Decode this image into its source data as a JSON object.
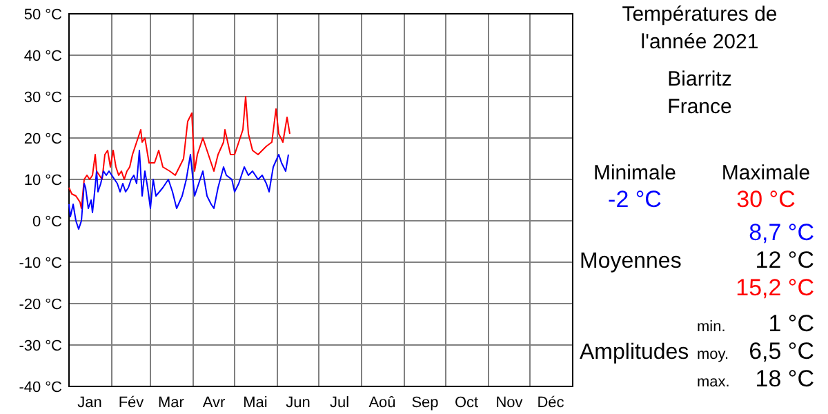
{
  "chart_data": {
    "type": "line",
    "title": "Températures de l'année 2021",
    "subtitle": "Biarritz France",
    "annotations": [
      "Minimale",
      "Maximale",
      "-2 °C",
      "30 °C",
      "8,7 °C",
      "Moyennes",
      "12 °C",
      "15,2 °C",
      "min.",
      "1 °C",
      "Amplitudes",
      "moy.",
      "6,5 °C",
      "max.",
      "18 °C"
    ],
    "xlim": [
      "2021-01-01",
      "2022-01-01"
    ],
    "xticks": [
      {
        "value": "2021-01-01",
        "label": null
      },
      {
        "value": "2021-01-16",
        "label": "Jan"
      },
      {
        "value": "2021-02-01",
        "label": null
      },
      {
        "value": "2021-02-15",
        "label": "Fév"
      },
      {
        "value": "2021-03-01",
        "label": null
      },
      {
        "value": "2021-03-16",
        "label": "Mar"
      },
      {
        "value": "2021-04-01",
        "label": null
      },
      {
        "value": "2021-04-16",
        "label": "Avr"
      },
      {
        "value": "2021-05-01",
        "label": null
      },
      {
        "value": "2021-05-16",
        "label": "Mai"
      },
      {
        "value": "2021-06-01",
        "label": null
      },
      {
        "value": "2021-06-16",
        "label": "Jun"
      },
      {
        "value": "2021-07-01",
        "label": null
      },
      {
        "value": "2021-07-16",
        "label": "Jul"
      },
      {
        "value": "2021-08-01",
        "label": null
      },
      {
        "value": "2021-08-16",
        "label": "Aoû"
      },
      {
        "value": "2021-09-01",
        "label": null
      },
      {
        "value": "2021-09-16",
        "label": "Sep"
      },
      {
        "value": "2021-10-01",
        "label": null
      },
      {
        "value": "2021-10-16",
        "label": "Oct"
      },
      {
        "value": "2021-11-01",
        "label": null
      },
      {
        "value": "2021-11-16",
        "label": "Nov"
      },
      {
        "value": "2021-12-01",
        "label": null
      },
      {
        "value": "2021-12-16",
        "label": "Déc"
      }
    ],
    "ylim": [
      -40,
      50
    ],
    "yticks": [
      {
        "value": -40,
        "label": "-40 °C"
      },
      {
        "value": -30,
        "label": "-30 °C"
      },
      {
        "value": -20,
        "label": "-20 °C"
      },
      {
        "value": -10,
        "label": "-10 °C"
      },
      {
        "value": 0,
        "label": "0 °C"
      },
      {
        "value": 10,
        "label": "10 °C"
      },
      {
        "value": 20,
        "label": "20 °C"
      },
      {
        "value": 30,
        "label": "30 °C"
      },
      {
        "value": 40,
        "label": "40 °C"
      },
      {
        "value": 50,
        "label": "50 °C"
      }
    ],
    "grid": true,
    "series": [
      {
        "color": "#ff0000",
        "x": [
          "2021-01-01",
          "2021-01-03",
          "2021-01-06",
          "2021-01-09",
          "2021-01-10",
          "2021-01-12",
          "2021-01-14",
          "2021-01-16",
          "2021-01-18",
          "2021-01-20",
          "2021-01-21",
          "2021-01-23",
          "2021-01-25",
          "2021-01-27",
          "2021-01-29",
          "2021-01-31",
          "2021-02-02",
          "2021-02-04",
          "2021-02-06",
          "2021-02-08",
          "2021-02-10",
          "2021-02-12",
          "2021-02-14",
          "2021-02-16",
          "2021-02-18",
          "2021-02-20",
          "2021-02-22",
          "2021-02-23",
          "2021-02-25",
          "2021-02-28",
          "2021-03-04",
          "2021-03-07",
          "2021-03-10",
          "2021-03-15",
          "2021-03-19",
          "2021-03-22",
          "2021-03-25",
          "2021-03-28",
          "2021-03-31",
          "2021-04-02",
          "2021-04-04",
          "2021-04-08",
          "2021-04-11",
          "2021-04-14",
          "2021-04-16",
          "2021-04-19",
          "2021-04-23",
          "2021-04-24",
          "2021-04-28",
          "2021-05-01",
          "2021-05-04",
          "2021-05-07",
          "2021-05-09",
          "2021-05-11",
          "2021-05-14",
          "2021-05-18",
          "2021-05-21",
          "2021-05-24",
          "2021-05-28",
          "2021-05-31",
          "2021-06-02",
          "2021-06-05",
          "2021-06-08",
          "2021-06-10"
        ],
        "values": [
          8,
          6.5,
          6,
          4.5,
          3,
          10,
          11,
          10,
          11,
          16,
          12,
          11,
          10,
          16,
          17,
          13,
          17,
          13,
          11,
          12,
          10,
          12,
          13,
          16,
          18,
          20,
          22,
          19,
          20,
          14,
          14,
          17,
          13,
          12,
          11,
          13,
          15,
          24,
          26,
          12,
          16,
          20,
          17,
          14,
          12,
          16,
          19,
          22,
          16,
          16,
          19,
          22,
          30,
          21,
          17,
          16,
          17,
          18,
          19,
          27,
          21,
          19,
          25,
          21
        ]
      },
      {
        "color": "#0000ff",
        "x": [
          "2021-01-01",
          "2021-01-02",
          "2021-01-04",
          "2021-01-06",
          "2021-01-08",
          "2021-01-10",
          "2021-01-12",
          "2021-01-13",
          "2021-01-15",
          "2021-01-17",
          "2021-01-18",
          "2021-01-19",
          "2021-01-21",
          "2021-01-22",
          "2021-01-24",
          "2021-01-26",
          "2021-01-28",
          "2021-01-30",
          "2021-02-01",
          "2021-02-03",
          "2021-02-05",
          "2021-02-07",
          "2021-02-09",
          "2021-02-11",
          "2021-02-13",
          "2021-02-15",
          "2021-02-17",
          "2021-02-19",
          "2021-02-21",
          "2021-02-23",
          "2021-02-25",
          "2021-02-27",
          "2021-03-01",
          "2021-03-03",
          "2021-03-05",
          "2021-03-10",
          "2021-03-14",
          "2021-03-17",
          "2021-03-20",
          "2021-03-24",
          "2021-03-27",
          "2021-03-30",
          "2021-04-02",
          "2021-04-04",
          "2021-04-08",
          "2021-04-11",
          "2021-04-14",
          "2021-04-16",
          "2021-04-19",
          "2021-04-23",
          "2021-04-25",
          "2021-04-29",
          "2021-05-01",
          "2021-05-04",
          "2021-05-08",
          "2021-05-11",
          "2021-05-14",
          "2021-05-18",
          "2021-05-21",
          "2021-05-24",
          "2021-05-26",
          "2021-05-29",
          "2021-06-02",
          "2021-06-04",
          "2021-06-07",
          "2021-06-09"
        ],
        "values": [
          4,
          1,
          4,
          0,
          -2,
          0,
          9,
          8,
          3,
          5,
          2,
          5,
          12,
          7,
          9,
          12,
          11,
          12,
          11,
          10,
          9,
          7,
          9,
          7,
          8,
          10,
          11,
          9,
          17,
          6,
          12,
          8,
          3,
          10,
          6,
          8,
          10,
          7,
          3,
          6,
          10,
          16,
          6,
          8,
          12,
          6,
          4,
          3,
          8,
          13,
          11,
          10,
          7,
          9,
          13,
          11,
          12,
          10,
          11,
          9,
          7,
          13,
          16,
          14,
          12,
          16
        ]
      }
    ]
  }
}
